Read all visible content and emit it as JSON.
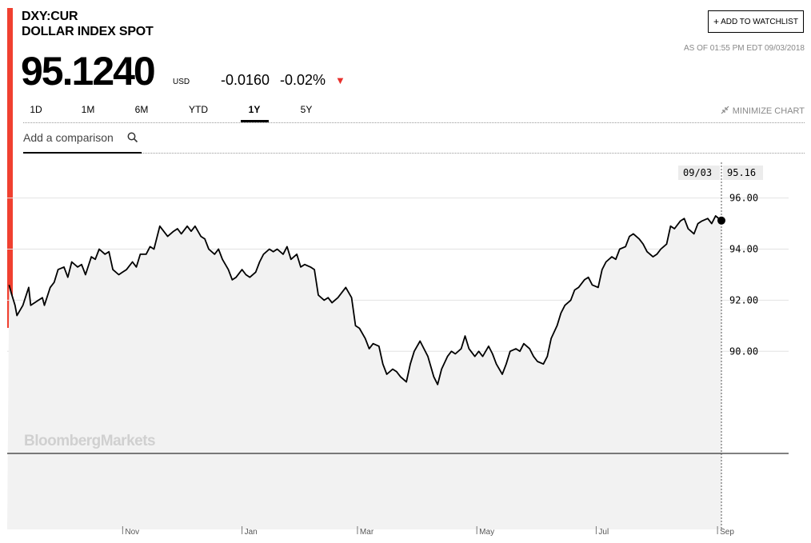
{
  "header": {
    "ticker": "DXY:CUR",
    "name": "DOLLAR INDEX SPOT",
    "price": "95.1240",
    "currency": "USD",
    "change": "-0.0160",
    "change_pct": "-0.02%",
    "down_arrow": "▼",
    "watchlist_label": "ADD TO WATCHLIST",
    "plus_symbol": "+",
    "as_of": "AS OF 01:55 PM EDT 09/03/2018"
  },
  "tabs": [
    {
      "label": "1D",
      "active": false
    },
    {
      "label": "1M",
      "active": false
    },
    {
      "label": "6M",
      "active": false
    },
    {
      "label": "YTD",
      "active": false
    },
    {
      "label": "1Y",
      "active": true
    },
    {
      "label": "5Y",
      "active": false
    }
  ],
  "minimize_label": "MINIMIZE CHART",
  "compare_placeholder": "Add a comparison",
  "colors": {
    "accent": "#f04030",
    "down": "#e8302c",
    "line": "#000000",
    "area": "#f2f2f2",
    "grid": "#e2e2e2"
  },
  "icons": {
    "search": "search-icon",
    "minimize": "minimize-icon",
    "down": "down-arrow-icon"
  },
  "chart_data": {
    "type": "area",
    "title": "",
    "xlabel": "",
    "ylabel": "",
    "ylim": [
      86.0,
      97.65
    ],
    "x_range": [
      "2017-09-03",
      "2018-09-03"
    ],
    "y_ticks": [
      "96.00",
      "94.00",
      "92.00",
      "90.00"
    ],
    "x_ticks": [
      {
        "label": "Nov",
        "date": "2017-11-01"
      },
      {
        "label": "Jan",
        "date": "2018-01-01"
      },
      {
        "label": "Mar",
        "date": "2018-03-01"
      },
      {
        "label": "May",
        "date": "2018-05-01"
      },
      {
        "label": "Jul",
        "date": "2018-07-01"
      },
      {
        "label": "Sep",
        "date": "2018-09-01"
      }
    ],
    "grid": true,
    "watermark": "BloombergMarkets",
    "hover": {
      "date": "09/03",
      "value": "95.16"
    },
    "last_value": 95.12,
    "series": [
      {
        "values": [
          [
            "2017-09-04",
            92.6
          ],
          [
            "2017-09-05",
            92.3
          ],
          [
            "2017-09-07",
            91.8
          ],
          [
            "2017-09-08",
            91.4
          ],
          [
            "2017-09-11",
            91.8
          ],
          [
            "2017-09-14",
            92.5
          ],
          [
            "2017-09-15",
            91.8
          ],
          [
            "2017-09-19",
            92.0
          ],
          [
            "2017-09-21",
            92.1
          ],
          [
            "2017-09-22",
            91.8
          ],
          [
            "2017-09-25",
            92.5
          ],
          [
            "2017-09-27",
            92.7
          ],
          [
            "2017-09-29",
            93.2
          ],
          [
            "2017-10-02",
            93.3
          ],
          [
            "2017-10-04",
            92.9
          ],
          [
            "2017-10-06",
            93.5
          ],
          [
            "2017-10-09",
            93.3
          ],
          [
            "2017-10-11",
            93.4
          ],
          [
            "2017-10-13",
            93.0
          ],
          [
            "2017-10-16",
            93.7
          ],
          [
            "2017-10-18",
            93.6
          ],
          [
            "2017-10-20",
            94.0
          ],
          [
            "2017-10-23",
            93.8
          ],
          [
            "2017-10-25",
            93.9
          ],
          [
            "2017-10-27",
            93.2
          ],
          [
            "2017-10-30",
            93.0
          ],
          [
            "2017-11-01",
            93.1
          ],
          [
            "2017-11-03",
            93.2
          ],
          [
            "2017-11-06",
            93.5
          ],
          [
            "2017-11-08",
            93.3
          ],
          [
            "2017-11-10",
            93.8
          ],
          [
            "2017-11-13",
            93.8
          ],
          [
            "2017-11-15",
            94.1
          ],
          [
            "2017-11-17",
            94.0
          ],
          [
            "2017-11-20",
            94.9
          ],
          [
            "2017-11-22",
            94.7
          ],
          [
            "2017-11-24",
            94.5
          ],
          [
            "2017-11-27",
            94.7
          ],
          [
            "2017-11-29",
            94.8
          ],
          [
            "2017-12-01",
            94.6
          ],
          [
            "2017-12-04",
            94.9
          ],
          [
            "2017-12-06",
            94.7
          ],
          [
            "2017-12-08",
            94.9
          ],
          [
            "2017-12-11",
            94.5
          ],
          [
            "2017-12-13",
            94.4
          ],
          [
            "2017-12-15",
            94.0
          ],
          [
            "2017-12-18",
            93.8
          ],
          [
            "2017-12-20",
            94.0
          ],
          [
            "2017-12-22",
            93.6
          ],
          [
            "2017-12-25",
            93.2
          ],
          [
            "2017-12-27",
            92.8
          ],
          [
            "2017-12-29",
            92.9
          ],
          [
            "2018-01-01",
            93.2
          ],
          [
            "2018-01-03",
            93.0
          ],
          [
            "2018-01-05",
            92.9
          ],
          [
            "2018-01-08",
            93.1
          ],
          [
            "2018-01-10",
            93.5
          ],
          [
            "2018-01-12",
            93.8
          ],
          [
            "2018-01-15",
            94.0
          ],
          [
            "2018-01-17",
            93.9
          ],
          [
            "2018-01-19",
            94.0
          ],
          [
            "2018-01-22",
            93.8
          ],
          [
            "2018-01-24",
            94.1
          ],
          [
            "2018-01-26",
            93.6
          ],
          [
            "2018-01-29",
            93.8
          ],
          [
            "2018-01-31",
            93.3
          ],
          [
            "2018-02-02",
            93.4
          ],
          [
            "2018-02-05",
            93.3
          ],
          [
            "2018-02-07",
            93.2
          ],
          [
            "2018-02-09",
            92.2
          ],
          [
            "2018-02-12",
            92.0
          ],
          [
            "2018-02-14",
            92.1
          ],
          [
            "2018-02-16",
            91.9
          ],
          [
            "2018-02-19",
            92.1
          ],
          [
            "2018-02-21",
            92.3
          ],
          [
            "2018-02-23",
            92.5
          ],
          [
            "2018-02-26",
            92.1
          ],
          [
            "2018-02-28",
            91.0
          ],
          [
            "2018-03-02",
            90.9
          ],
          [
            "2018-03-05",
            90.5
          ],
          [
            "2018-03-07",
            90.1
          ],
          [
            "2018-03-09",
            90.3
          ],
          [
            "2018-03-12",
            90.2
          ],
          [
            "2018-03-14",
            89.5
          ],
          [
            "2018-03-16",
            89.1
          ],
          [
            "2018-03-19",
            89.3
          ],
          [
            "2018-03-21",
            89.2
          ],
          [
            "2018-03-23",
            89.0
          ],
          [
            "2018-03-26",
            88.8
          ],
          [
            "2018-03-28",
            89.5
          ],
          [
            "2018-03-30",
            90.0
          ],
          [
            "2018-04-02",
            90.4
          ],
          [
            "2018-04-04",
            90.1
          ],
          [
            "2018-04-06",
            89.8
          ],
          [
            "2018-04-09",
            89.0
          ],
          [
            "2018-04-11",
            88.7
          ],
          [
            "2018-04-13",
            89.3
          ],
          [
            "2018-04-16",
            89.8
          ],
          [
            "2018-04-18",
            90.0
          ],
          [
            "2018-04-20",
            89.9
          ],
          [
            "2018-04-23",
            90.1
          ],
          [
            "2018-04-25",
            90.6
          ],
          [
            "2018-04-27",
            90.1
          ],
          [
            "2018-04-30",
            89.8
          ],
          [
            "2018-05-02",
            90.0
          ],
          [
            "2018-05-04",
            89.8
          ],
          [
            "2018-05-07",
            90.2
          ],
          [
            "2018-05-09",
            89.9
          ],
          [
            "2018-05-11",
            89.5
          ],
          [
            "2018-05-14",
            89.1
          ],
          [
            "2018-05-16",
            89.5
          ],
          [
            "2018-05-18",
            90.0
          ],
          [
            "2018-05-21",
            90.1
          ],
          [
            "2018-05-23",
            90.0
          ],
          [
            "2018-05-25",
            90.3
          ],
          [
            "2018-05-28",
            90.1
          ],
          [
            "2018-05-30",
            89.8
          ],
          [
            "2018-06-01",
            89.6
          ],
          [
            "2018-06-04",
            89.5
          ],
          [
            "2018-06-06",
            89.8
          ],
          [
            "2018-06-08",
            90.5
          ],
          [
            "2018-06-11",
            91.0
          ],
          [
            "2018-06-13",
            91.5
          ],
          [
            "2018-06-15",
            91.8
          ],
          [
            "2018-06-18",
            92.0
          ],
          [
            "2018-06-20",
            92.4
          ],
          [
            "2018-06-22",
            92.5
          ],
          [
            "2018-06-25",
            92.8
          ],
          [
            "2018-06-27",
            92.9
          ],
          [
            "2018-06-29",
            92.6
          ],
          [
            "2018-07-02",
            92.5
          ],
          [
            "2018-07-04",
            93.2
          ],
          [
            "2018-07-06",
            93.5
          ],
          [
            "2018-07-09",
            93.7
          ],
          [
            "2018-07-11",
            93.6
          ],
          [
            "2018-07-13",
            94.0
          ],
          [
            "2018-07-16",
            94.1
          ],
          [
            "2018-07-18",
            94.5
          ],
          [
            "2018-07-20",
            94.6
          ],
          [
            "2018-07-23",
            94.4
          ],
          [
            "2018-07-25",
            94.2
          ],
          [
            "2018-07-27",
            93.9
          ],
          [
            "2018-07-30",
            93.7
          ],
          [
            "2018-08-01",
            93.8
          ],
          [
            "2018-08-03",
            94.0
          ],
          [
            "2018-08-06",
            94.2
          ],
          [
            "2018-08-08",
            94.9
          ],
          [
            "2018-08-10",
            94.8
          ],
          [
            "2018-08-13",
            95.1
          ],
          [
            "2018-08-15",
            95.2
          ],
          [
            "2018-08-17",
            94.8
          ],
          [
            "2018-08-20",
            94.6
          ],
          [
            "2018-08-22",
            95.0
          ],
          [
            "2018-08-24",
            95.1
          ],
          [
            "2018-08-27",
            95.2
          ],
          [
            "2018-08-29",
            95.0
          ],
          [
            "2018-08-31",
            95.3
          ],
          [
            "2018-09-03",
            95.12
          ]
        ]
      }
    ]
  }
}
